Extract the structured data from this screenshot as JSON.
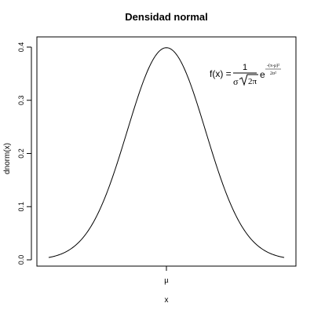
{
  "chart_data": {
    "type": "line",
    "title": "Densidad normal",
    "xlabel": "x",
    "ylabel": "dnorm(x)",
    "x_tick_labels": [
      "μ"
    ],
    "xlim": [
      -3,
      3
    ],
    "ylim": [
      0,
      0.4
    ],
    "y_ticks": [
      0.0,
      0.1,
      0.2,
      0.3,
      0.4
    ],
    "y_tick_labels": [
      "0.0",
      "0.1",
      "0.2",
      "0.3",
      "0.4"
    ],
    "grid": false,
    "series": [
      {
        "x": [
          -3,
          -2.75,
          -2.5,
          -2.25,
          -2,
          -1.75,
          -1.5,
          -1.25,
          -1,
          -0.75,
          -0.5,
          -0.25,
          0,
          0.25,
          0.5,
          0.75,
          1,
          1.25,
          1.5,
          1.75,
          2,
          2.25,
          2.5,
          2.75,
          3
        ],
        "y": [
          0.0044,
          0.0091,
          0.0175,
          0.0317,
          0.054,
          0.0863,
          0.1295,
          0.1826,
          0.242,
          0.3011,
          0.3521,
          0.3867,
          0.3989,
          0.3867,
          0.3521,
          0.3011,
          0.242,
          0.1826,
          0.1295,
          0.0863,
          0.054,
          0.0317,
          0.0175,
          0.0091,
          0.0044
        ]
      }
    ],
    "annotations": {
      "formula_lhs": "f(x) =",
      "formula_num": "1",
      "formula_den_sigma": "σ",
      "formula_den_root": "2π",
      "formula_e": "e",
      "formula_exp_num": "-(x-μ)²",
      "formula_exp_den": "2σ²"
    }
  }
}
